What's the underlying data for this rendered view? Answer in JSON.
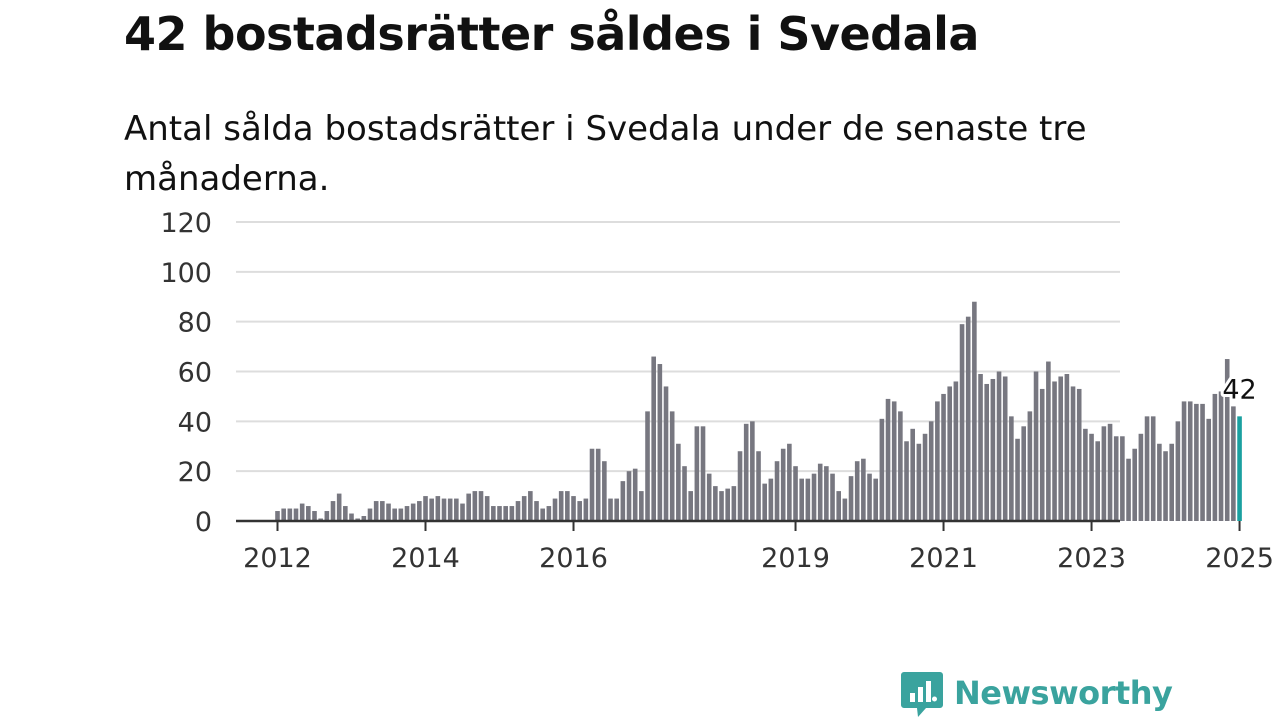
{
  "header": {
    "title": "42 bostadsrätter såldes i Svedala",
    "subtitle": "Antal sålda bostadsrätter i Svedala under de senaste tre månaderna."
  },
  "brand": {
    "name": "Newsworthy",
    "color": "#3aa39e"
  },
  "colors": {
    "bar": "#777780",
    "highlight": "#1aa0a0",
    "grid": "#dddddd",
    "axis": "#333333"
  },
  "chart_data": {
    "type": "bar",
    "title": "",
    "xlabel": "",
    "ylabel": "",
    "ylim": [
      0,
      120
    ],
    "yticks": [
      0,
      20,
      40,
      60,
      80,
      100,
      120
    ],
    "ytick_labels": [
      "0",
      "20",
      "40",
      "60",
      "80",
      "100",
      "120"
    ],
    "xticks": [
      {
        "label": "2012",
        "date": "2012-01"
      },
      {
        "label": "2014",
        "date": "2014-01"
      },
      {
        "label": "2016",
        "date": "2016-01"
      },
      {
        "label": "2019",
        "date": "2019-01"
      },
      {
        "label": "2021",
        "date": "2021-01"
      },
      {
        "label": "2023",
        "date": "2023-01"
      },
      {
        "label": "2025",
        "date": "2025-01"
      }
    ],
    "grid": true,
    "legend": "none",
    "categories": [
      "2012-01",
      "2012-02",
      "2012-03",
      "2012-04",
      "2012-05",
      "2012-06",
      "2012-07",
      "2012-08",
      "2012-09",
      "2012-10",
      "2012-11",
      "2012-12",
      "2013-01",
      "2013-02",
      "2013-03",
      "2013-04",
      "2013-05",
      "2013-06",
      "2013-07",
      "2013-08",
      "2013-09",
      "2013-10",
      "2013-11",
      "2013-12",
      "2014-01",
      "2014-02",
      "2014-03",
      "2014-04",
      "2014-05",
      "2014-06",
      "2014-07",
      "2014-08",
      "2014-09",
      "2014-10",
      "2014-11",
      "2014-12",
      "2015-01",
      "2015-02",
      "2015-03",
      "2015-04",
      "2015-05",
      "2015-06",
      "2015-07",
      "2015-08",
      "2015-09",
      "2015-10",
      "2015-11",
      "2015-12",
      "2016-01",
      "2016-02",
      "2016-03",
      "2016-04",
      "2016-05",
      "2016-06",
      "2016-07",
      "2016-08",
      "2016-09",
      "2016-10",
      "2016-11",
      "2016-12",
      "2017-01",
      "2017-02",
      "2017-03",
      "2017-04",
      "2017-05",
      "2017-06",
      "2017-07",
      "2017-08",
      "2017-09",
      "2017-10",
      "2017-11",
      "2017-12",
      "2018-01",
      "2018-02",
      "2018-03",
      "2018-04",
      "2018-05",
      "2018-06",
      "2018-07",
      "2018-08",
      "2018-09",
      "2018-10",
      "2018-11",
      "2018-12",
      "2019-01",
      "2019-02",
      "2019-03",
      "2019-04",
      "2019-05",
      "2019-06",
      "2019-07",
      "2019-08",
      "2019-09",
      "2019-10",
      "2019-11",
      "2019-12",
      "2020-01",
      "2020-02",
      "2020-03",
      "2020-04",
      "2020-05",
      "2020-06",
      "2020-07",
      "2020-08",
      "2020-09",
      "2020-10",
      "2020-11",
      "2020-12",
      "2021-01",
      "2021-02",
      "2021-03",
      "2021-04",
      "2021-05",
      "2021-06",
      "2021-07",
      "2021-08",
      "2021-09",
      "2021-10",
      "2021-11",
      "2021-12",
      "2022-01",
      "2022-02",
      "2022-03",
      "2022-04",
      "2022-05",
      "2022-06",
      "2022-07",
      "2022-08",
      "2022-09",
      "2022-10",
      "2022-11",
      "2022-12",
      "2023-01",
      "2023-02",
      "2023-03",
      "2023-04",
      "2023-05",
      "2023-06",
      "2023-07",
      "2023-08",
      "2023-09",
      "2023-10",
      "2023-11",
      "2023-12",
      "2024-01",
      "2024-02",
      "2024-03",
      "2024-04",
      "2024-05",
      "2024-06",
      "2024-07",
      "2024-08",
      "2024-09",
      "2024-10",
      "2024-11",
      "2024-12",
      "2025-01"
    ],
    "values": [
      4,
      5,
      5,
      5,
      7,
      6,
      4,
      1,
      4,
      8,
      11,
      6,
      3,
      1,
      2,
      5,
      8,
      8,
      7,
      5,
      5,
      6,
      7,
      8,
      10,
      9,
      10,
      9,
      9,
      9,
      7,
      11,
      12,
      12,
      10,
      6,
      6,
      6,
      6,
      8,
      10,
      12,
      8,
      5,
      6,
      9,
      12,
      12,
      10,
      8,
      9,
      29,
      29,
      24,
      9,
      9,
      16,
      20,
      21,
      12,
      44,
      66,
      63,
      54,
      44,
      31,
      22,
      12,
      38,
      38,
      19,
      14,
      12,
      13,
      14,
      28,
      39,
      40,
      28,
      15,
      17,
      24,
      29,
      31,
      22,
      17,
      17,
      19,
      23,
      22,
      19,
      12,
      9,
      18,
      24,
      25,
      19,
      17,
      41,
      49,
      48,
      44,
      32,
      37,
      31,
      35,
      40,
      48,
      51,
      54,
      56,
      79,
      82,
      88,
      59,
      55,
      57,
      60,
      58,
      42,
      33,
      38,
      44,
      60,
      53,
      64,
      56,
      58,
      59,
      54,
      53,
      37,
      35,
      32,
      38,
      39,
      34,
      34,
      25,
      29,
      35,
      42,
      42,
      31,
      28,
      31,
      40,
      48,
      48,
      47,
      47,
      41,
      51,
      52,
      65,
      46,
      42
    ],
    "highlight": {
      "category": "2025-01",
      "value": 42,
      "label": "42"
    }
  }
}
